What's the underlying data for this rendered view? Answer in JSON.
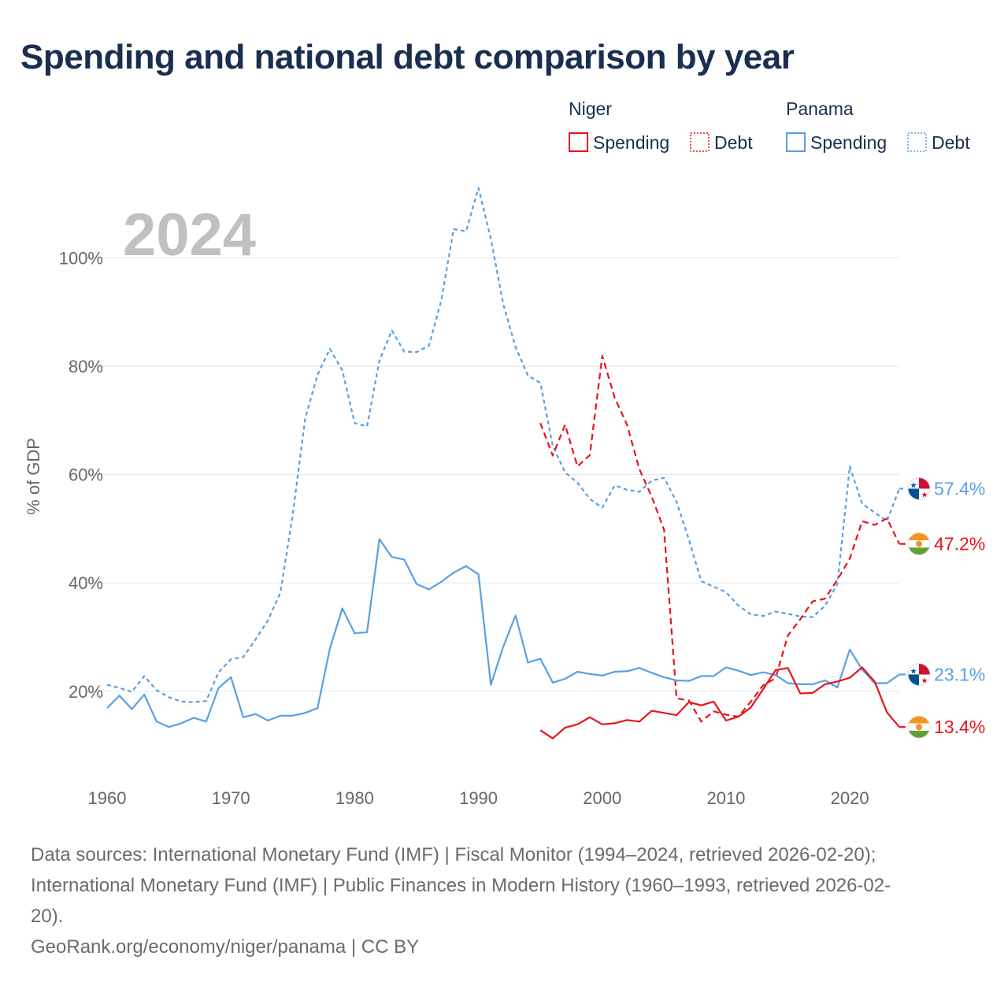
{
  "chart_data": {
    "type": "line",
    "title": "Spending and national debt comparison by year",
    "ylabel": "% of GDP",
    "xlabel": "",
    "year_watermark": "2024",
    "xlim": [
      1960,
      2024
    ],
    "ylim": [
      5,
      113
    ],
    "x_ticks": [
      1960,
      1970,
      1980,
      1990,
      2000,
      2010,
      2020
    ],
    "y_ticks": [
      20,
      40,
      60,
      80,
      100
    ],
    "y_tick_labels": [
      "20%",
      "40%",
      "60%",
      "80%",
      "100%"
    ],
    "grid": true,
    "legend": {
      "placement": "top-right",
      "groups": [
        {
          "name": "Niger",
          "items": [
            "Spending",
            "Debt"
          ]
        },
        {
          "name": "Panama",
          "items": [
            "Spending",
            "Debt"
          ]
        }
      ]
    },
    "colors": {
      "niger": "#e8141c",
      "panama": "#5aa0e0"
    },
    "series": [
      {
        "name": "Niger Spending",
        "country": "Niger",
        "metric": "Spending",
        "color": "#e8141c",
        "dash": "solid",
        "x": [
          1995,
          1996,
          1997,
          1998,
          1999,
          2000,
          2001,
          2002,
          2003,
          2004,
          2005,
          2006,
          2007,
          2008,
          2009,
          2010,
          2011,
          2012,
          2013,
          2014,
          2015,
          2016,
          2017,
          2018,
          2019,
          2020,
          2021,
          2022,
          2023,
          2024
        ],
        "values": [
          12.8,
          11.3,
          13.3,
          13.9,
          15.2,
          13.9,
          14.1,
          14.7,
          14.4,
          16.4,
          16.0,
          15.6,
          18.0,
          17.4,
          18.1,
          14.6,
          15.3,
          17.0,
          20.4,
          23.9,
          24.3,
          19.6,
          19.7,
          21.3,
          21.8,
          22.5,
          24.4,
          21.8,
          16.1,
          13.4
        ],
        "end_label": "13.4%"
      },
      {
        "name": "Niger Debt",
        "country": "Niger",
        "metric": "Debt",
        "color": "#e8141c",
        "dash": "dashed",
        "x": [
          1995,
          1996,
          1997,
          1998,
          1999,
          2000,
          2001,
          2002,
          2003,
          2004,
          2005,
          2006,
          2007,
          2008,
          2009,
          2010,
          2011,
          2012,
          2013,
          2014,
          2015,
          2016,
          2017,
          2018,
          2019,
          2020,
          2021,
          2022,
          2023,
          2024
        ],
        "values": [
          69.5,
          63.5,
          69.2,
          61.5,
          63.6,
          81.9,
          74.2,
          69.2,
          61.0,
          55.9,
          49.8,
          18.7,
          18.3,
          14.4,
          16.3,
          15.7,
          15.3,
          18.1,
          21.1,
          22.4,
          30.3,
          33.3,
          36.6,
          37.1,
          40.6,
          44.5,
          51.4,
          50.7,
          51.9,
          47.2
        ],
        "end_label": "47.2%"
      },
      {
        "name": "Panama Spending",
        "country": "Panama",
        "metric": "Spending",
        "color": "#5aa0e0",
        "dash": "solid",
        "x": [
          1960,
          1961,
          1962,
          1963,
          1964,
          1965,
          1966,
          1967,
          1968,
          1969,
          1970,
          1971,
          1972,
          1973,
          1974,
          1975,
          1976,
          1977,
          1978,
          1979,
          1980,
          1981,
          1982,
          1983,
          1984,
          1985,
          1986,
          1987,
          1988,
          1989,
          1990,
          1991,
          1992,
          1993,
          1994,
          1995,
          1996,
          1997,
          1998,
          1999,
          2000,
          2001,
          2002,
          2003,
          2004,
          2005,
          2006,
          2007,
          2008,
          2009,
          2010,
          2011,
          2012,
          2013,
          2014,
          2015,
          2016,
          2017,
          2018,
          2019,
          2020,
          2021,
          2022,
          2023,
          2024
        ],
        "values": [
          16.9,
          19.2,
          16.7,
          19.4,
          14.4,
          13.4,
          14.1,
          15.1,
          14.4,
          20.6,
          22.6,
          15.2,
          15.8,
          14.6,
          15.5,
          15.5,
          16.0,
          16.9,
          27.9,
          35.3,
          30.7,
          30.9,
          48.1,
          44.8,
          44.3,
          39.8,
          38.8,
          40.2,
          41.9,
          43.1,
          41.6,
          21.2,
          28.2,
          34.0,
          25.3,
          26.0,
          21.6,
          22.3,
          23.6,
          23.2,
          22.9,
          23.6,
          23.7,
          24.3,
          23.4,
          22.6,
          22.0,
          21.9,
          22.8,
          22.8,
          24.4,
          23.8,
          23.0,
          23.5,
          23.0,
          21.5,
          21.3,
          21.3,
          22.0,
          20.7,
          27.7,
          24.0,
          21.5,
          21.5,
          23.1
        ],
        "end_label": "23.1%"
      },
      {
        "name": "Panama Debt",
        "country": "Panama",
        "metric": "Debt",
        "color": "#5aa0e0",
        "dash": "dotted",
        "x": [
          1960,
          1961,
          1962,
          1963,
          1964,
          1965,
          1966,
          1967,
          1968,
          1969,
          1970,
          1971,
          1972,
          1973,
          1974,
          1975,
          1976,
          1977,
          1978,
          1979,
          1980,
          1981,
          1982,
          1983,
          1984,
          1985,
          1986,
          1987,
          1988,
          1989,
          1990,
          1991,
          1992,
          1993,
          1994,
          1995,
          1996,
          1997,
          1998,
          1999,
          2000,
          2001,
          2002,
          2003,
          2004,
          2005,
          2006,
          2007,
          2008,
          2009,
          2010,
          2011,
          2012,
          2013,
          2014,
          2015,
          2016,
          2017,
          2018,
          2019,
          2020,
          2021,
          2022,
          2023,
          2024
        ],
        "values": [
          21.2,
          20.6,
          19.9,
          22.8,
          20.2,
          18.9,
          18.1,
          18.0,
          18.2,
          23.5,
          25.9,
          26.3,
          29.6,
          33.1,
          38.2,
          52.7,
          70.3,
          78.4,
          83.2,
          79.2,
          69.5,
          68.9,
          81.0,
          86.6,
          82.7,
          82.6,
          83.8,
          92.2,
          105.3,
          104.9,
          112.9,
          103.5,
          91.5,
          83.5,
          78.3,
          76.9,
          65.3,
          60.4,
          58.5,
          55.5,
          53.9,
          58.0,
          57.2,
          56.8,
          58.9,
          59.4,
          55.0,
          48.0,
          40.3,
          39.3,
          38.3,
          35.8,
          34.2,
          33.9,
          34.7,
          34.3,
          33.8,
          33.7,
          35.8,
          39.8,
          61.5,
          54.6,
          53.0,
          51.4,
          57.4
        ],
        "end_label": "57.4%"
      }
    ]
  },
  "footer": {
    "sources_line1": "Data sources: International Monetary Fund (IMF) | Fiscal Monitor (1994–2024, retrieved 2026-02-20);",
    "sources_line2": "International Monetary Fund (IMF) | Public Finances in Modern History (1960–1993, retrieved 2026-02-",
    "sources_line3": "20).",
    "credit": "GeoRank.org/economy/niger/panama | CC BY"
  }
}
